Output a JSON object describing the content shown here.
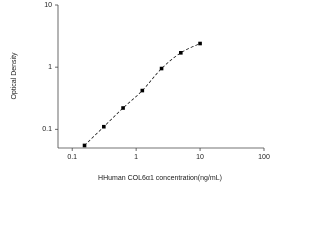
{
  "chart_data": {
    "type": "scatter",
    "x_label": "HHuman COL6α1 concentration(ng/mL)",
    "y_label": "Optical Density",
    "x": [
      0.156,
      0.3125,
      0.625,
      1.25,
      2.5,
      5,
      10
    ],
    "series": [
      {
        "color": "#000000",
        "values": [
          0.055,
          0.11,
          0.22,
          0.42,
          0.95,
          1.7,
          2.4
        ]
      }
    ],
    "xlim": [
      0.06,
      100
    ],
    "ylim": [
      0.05,
      10
    ],
    "xticks": [
      0.1,
      1,
      10,
      100
    ],
    "yticks": [
      0.1,
      1,
      10
    ],
    "x_log": true,
    "y_log": true,
    "fit_line": true
  }
}
